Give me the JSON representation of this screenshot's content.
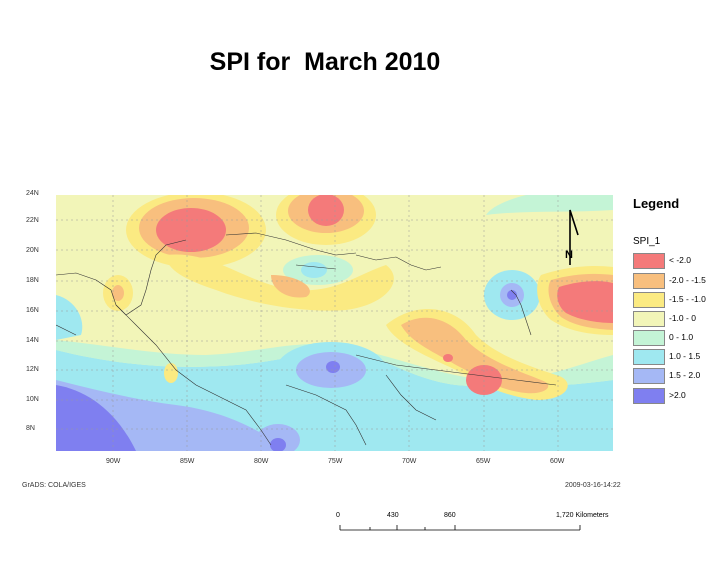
{
  "title": "SPI for  March 2010",
  "map": {
    "lat_labels": [
      "24N",
      "22N",
      "20N",
      "18N",
      "16N",
      "14N",
      "12N",
      "10N",
      "8N"
    ],
    "lon_labels": [
      "90W",
      "85W",
      "80W",
      "75W",
      "70W",
      "65W",
      "60W"
    ],
    "north_arrow_label": "N",
    "footer_left": "GrADS: COLA/IGES",
    "footer_right": "2009-03-16-14:22"
  },
  "legend": {
    "title": "Legend",
    "field": "SPI_1",
    "classes": [
      {
        "label": "< -2.0",
        "color": "#f47a7a"
      },
      {
        "label": "-2.0 - -1.5",
        "color": "#f8bf7e"
      },
      {
        "label": "-1.5 - -1.0",
        "color": "#fbea82"
      },
      {
        "label": "-1.0 - 0",
        "color": "#f2f5b8"
      },
      {
        "label": "0 - 1.0",
        "color": "#c4f4d6"
      },
      {
        "label": "1.0 - 1.5",
        "color": "#9fe8f0"
      },
      {
        "label": "1.5 - 2.0",
        "color": "#a5b8f5"
      },
      {
        "label": ">2.0",
        "color": "#7f7ff0"
      }
    ]
  },
  "scale_bar": {
    "ticks": [
      "0",
      "430",
      "860",
      "1,720 Kilometers"
    ]
  }
}
